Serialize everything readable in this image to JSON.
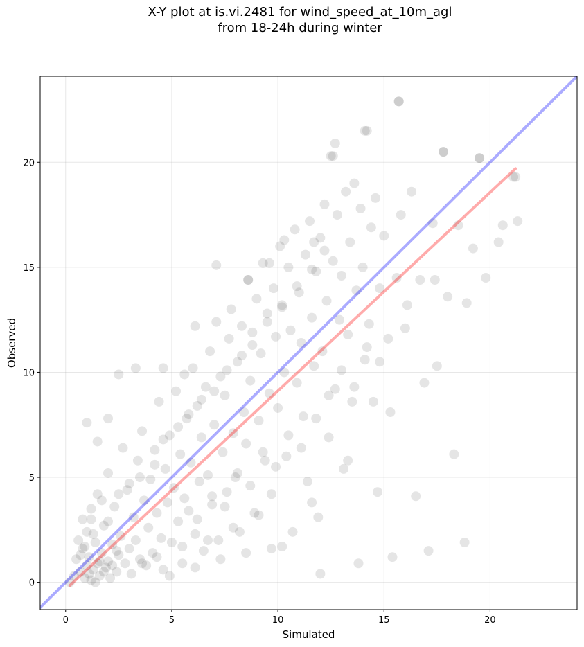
{
  "chart_data": {
    "type": "scatter",
    "title": "X-Y plot at is.vi.2481 for wind_speed_at_10m_agl",
    "subtitle": "from 18-24h during winter",
    "xlabel": "Simulated",
    "ylabel": "Observed",
    "xlim": [
      -1.2,
      24.1
    ],
    "ylim": [
      -1.3,
      24.1
    ],
    "xticks": [
      0,
      5,
      10,
      15,
      20
    ],
    "yticks": [
      0,
      5,
      10,
      15,
      20
    ],
    "grid": true,
    "point_color": "#000000",
    "point_alpha": 0.1,
    "series": [
      {
        "type": "scatter",
        "points": [
          [
            0.2,
            0.0
          ],
          [
            0.4,
            0.3
          ],
          [
            0.5,
            1.1
          ],
          [
            0.6,
            2.0
          ],
          [
            0.7,
            0.5
          ],
          [
            0.8,
            1.6
          ],
          [
            0.9,
            0.2
          ],
          [
            1.0,
            0.8
          ],
          [
            1.0,
            2.4
          ],
          [
            1.1,
            1.2
          ],
          [
            1.2,
            0.1
          ],
          [
            1.2,
            3.0
          ],
          [
            1.3,
            0.6
          ],
          [
            1.4,
            1.9
          ],
          [
            1.5,
            0.9
          ],
          [
            1.5,
            4.2
          ],
          [
            1.6,
            0.3
          ],
          [
            1.7,
            1.4
          ],
          [
            1.8,
            2.7
          ],
          [
            1.9,
            0.7
          ],
          [
            2.0,
            1.0
          ],
          [
            2.0,
            5.2
          ],
          [
            2.1,
            0.2
          ],
          [
            2.2,
            1.8
          ],
          [
            2.3,
            3.6
          ],
          [
            2.4,
            0.5
          ],
          [
            2.5,
            1.3
          ],
          [
            2.6,
            2.2
          ],
          [
            2.7,
            6.4
          ],
          [
            2.8,
            0.9
          ],
          [
            2.9,
            4.4
          ],
          [
            3.0,
            1.6
          ],
          [
            3.1,
            0.4
          ],
          [
            3.2,
            3.1
          ],
          [
            3.3,
            2.0
          ],
          [
            3.4,
            5.8
          ],
          [
            3.5,
            1.1
          ],
          [
            3.6,
            7.2
          ],
          [
            3.7,
            3.9
          ],
          [
            3.8,
            0.8
          ],
          [
            3.9,
            2.6
          ],
          [
            4.0,
            4.9
          ],
          [
            4.1,
            1.4
          ],
          [
            4.2,
            6.3
          ],
          [
            4.3,
            3.3
          ],
          [
            4.4,
            8.6
          ],
          [
            4.5,
            2.1
          ],
          [
            4.6,
            0.6
          ],
          [
            4.7,
            5.4
          ],
          [
            4.8,
            3.8
          ],
          [
            4.9,
            7.0
          ],
          [
            5.0,
            1.9
          ],
          [
            5.1,
            4.5
          ],
          [
            5.2,
            9.1
          ],
          [
            5.3,
            2.9
          ],
          [
            5.4,
            6.1
          ],
          [
            5.5,
            0.9
          ],
          [
            5.6,
            4.0
          ],
          [
            5.7,
            7.8
          ],
          [
            5.8,
            3.4
          ],
          [
            5.9,
            5.7
          ],
          [
            6.0,
            10.2
          ],
          [
            6.1,
            2.3
          ],
          [
            6.2,
            8.4
          ],
          [
            6.3,
            4.8
          ],
          [
            6.4,
            6.9
          ],
          [
            6.5,
            1.5
          ],
          [
            6.6,
            9.3
          ],
          [
            6.7,
            5.1
          ],
          [
            6.8,
            11.0
          ],
          [
            6.9,
            3.7
          ],
          [
            7.0,
            7.5
          ],
          [
            7.1,
            12.4
          ],
          [
            7.2,
            2.0
          ],
          [
            7.3,
            9.8
          ],
          [
            7.4,
            6.2
          ],
          [
            7.5,
            8.9
          ],
          [
            7.6,
            4.3
          ],
          [
            7.7,
            11.6
          ],
          [
            7.8,
            13.0
          ],
          [
            7.9,
            7.1
          ],
          [
            8.0,
            5.0
          ],
          [
            8.1,
            10.5
          ],
          [
            8.2,
            2.4
          ],
          [
            8.3,
            12.2
          ],
          [
            8.4,
            8.1
          ],
          [
            8.5,
            6.6
          ],
          [
            8.6,
            14.4
          ],
          [
            8.7,
            9.6
          ],
          [
            8.8,
            11.3
          ],
          [
            8.9,
            3.3
          ],
          [
            9.0,
            13.5
          ],
          [
            9.1,
            7.7
          ],
          [
            9.2,
            10.9
          ],
          [
            9.3,
            15.2
          ],
          [
            9.4,
            5.8
          ],
          [
            9.5,
            12.8
          ],
          [
            9.6,
            9.0
          ],
          [
            9.7,
            1.6
          ],
          [
            9.8,
            14.0
          ],
          [
            9.9,
            11.7
          ],
          [
            10.0,
            8.3
          ],
          [
            10.1,
            16.0
          ],
          [
            10.2,
            13.1
          ],
          [
            10.3,
            10.0
          ],
          [
            10.4,
            6.0
          ],
          [
            10.5,
            15.0
          ],
          [
            10.6,
            12.0
          ],
          [
            10.7,
            2.4
          ],
          [
            10.8,
            16.8
          ],
          [
            10.9,
            9.5
          ],
          [
            11.0,
            13.8
          ],
          [
            11.1,
            11.4
          ],
          [
            11.2,
            7.9
          ],
          [
            11.3,
            15.6
          ],
          [
            11.4,
            4.8
          ],
          [
            11.5,
            17.2
          ],
          [
            11.6,
            12.6
          ],
          [
            11.7,
            10.3
          ],
          [
            11.8,
            14.8
          ],
          [
            11.9,
            3.1
          ],
          [
            12.0,
            16.4
          ],
          [
            12.1,
            11.0
          ],
          [
            12.2,
            18.0
          ],
          [
            12.3,
            13.4
          ],
          [
            12.4,
            6.9
          ],
          [
            12.5,
            20.3
          ],
          [
            12.6,
            15.3
          ],
          [
            12.7,
            9.2
          ],
          [
            12.8,
            17.5
          ],
          [
            12.9,
            12.5
          ],
          [
            13.0,
            14.6
          ],
          [
            13.1,
            5.4
          ],
          [
            13.2,
            18.6
          ],
          [
            13.3,
            11.8
          ],
          [
            13.4,
            16.2
          ],
          [
            13.5,
            8.6
          ],
          [
            13.6,
            19.0
          ],
          [
            13.7,
            13.9
          ],
          [
            13.8,
            0.9
          ],
          [
            13.9,
            17.8
          ],
          [
            14.0,
            15.0
          ],
          [
            14.1,
            10.6
          ],
          [
            14.2,
            21.5
          ],
          [
            14.3,
            12.3
          ],
          [
            14.4,
            16.9
          ],
          [
            14.5,
            8.6
          ],
          [
            14.6,
            18.3
          ],
          [
            14.7,
            4.3
          ],
          [
            14.8,
            14.0
          ],
          [
            15.0,
            16.5
          ],
          [
            15.2,
            11.6
          ],
          [
            15.4,
            1.2
          ],
          [
            15.6,
            14.5
          ],
          [
            15.7,
            22.9
          ],
          [
            15.8,
            17.5
          ],
          [
            16.0,
            12.1
          ],
          [
            16.3,
            18.6
          ],
          [
            16.5,
            4.1
          ],
          [
            16.7,
            14.4
          ],
          [
            16.9,
            9.5
          ],
          [
            17.1,
            1.5
          ],
          [
            17.3,
            17.1
          ],
          [
            17.5,
            10.3
          ],
          [
            17.8,
            20.5
          ],
          [
            18.0,
            13.6
          ],
          [
            18.3,
            6.1
          ],
          [
            18.5,
            17.0
          ],
          [
            18.8,
            1.9
          ],
          [
            18.9,
            13.3
          ],
          [
            19.2,
            15.9
          ],
          [
            19.5,
            20.2
          ],
          [
            19.8,
            14.5
          ],
          [
            20.4,
            16.2
          ],
          [
            20.6,
            17.0
          ],
          [
            21.1,
            19.3
          ],
          [
            21.3,
            17.2
          ],
          [
            15.3,
            8.1
          ],
          [
            16.1,
            13.2
          ],
          [
            17.4,
            14.4
          ],
          [
            0.7,
            1.3
          ],
          [
            0.9,
            1.7
          ],
          [
            1.1,
            0.4
          ],
          [
            1.3,
            2.3
          ],
          [
            1.4,
            0.0
          ],
          [
            1.6,
            1.0
          ],
          [
            1.8,
            0.5
          ],
          [
            2.0,
            2.9
          ],
          [
            2.2,
            0.8
          ],
          [
            2.4,
            1.5
          ],
          [
            0.8,
            3.0
          ],
          [
            1.2,
            3.5
          ],
          [
            1.7,
            3.9
          ],
          [
            2.5,
            4.2
          ],
          [
            3.0,
            4.7
          ],
          [
            3.5,
            5.0
          ],
          [
            4.2,
            5.6
          ],
          [
            4.6,
            6.8
          ],
          [
            5.3,
            7.4
          ],
          [
            5.8,
            8.0
          ],
          [
            6.4,
            8.7
          ],
          [
            7.0,
            9.1
          ],
          [
            7.6,
            10.1
          ],
          [
            8.3,
            10.8
          ],
          [
            8.8,
            11.9
          ],
          [
            9.5,
            12.4
          ],
          [
            10.2,
            13.2
          ],
          [
            10.9,
            14.1
          ],
          [
            11.6,
            14.9
          ],
          [
            12.2,
            15.8
          ],
          [
            3.6,
            0.9
          ],
          [
            4.3,
            1.2
          ],
          [
            4.9,
            0.3
          ],
          [
            5.5,
            1.7
          ],
          [
            6.1,
            0.7
          ],
          [
            6.7,
            2.0
          ],
          [
            7.3,
            1.1
          ],
          [
            7.9,
            2.6
          ],
          [
            8.5,
            1.4
          ],
          [
            9.1,
            3.2
          ],
          [
            6.2,
            3.0
          ],
          [
            6.9,
            4.1
          ],
          [
            7.5,
            3.6
          ],
          [
            8.1,
            5.2
          ],
          [
            8.7,
            4.6
          ],
          [
            9.3,
            6.2
          ],
          [
            9.9,
            5.5
          ],
          [
            10.5,
            7.0
          ],
          [
            11.1,
            6.4
          ],
          [
            11.8,
            7.8
          ],
          [
            12.4,
            8.9
          ],
          [
            13.0,
            10.1
          ],
          [
            13.6,
            9.3
          ],
          [
            14.2,
            11.2
          ],
          [
            14.8,
            10.5
          ],
          [
            12.0,
            0.4
          ],
          [
            11.6,
            3.8
          ],
          [
            10.2,
            1.7
          ],
          [
            9.7,
            4.2
          ],
          [
            13.3,
            5.8
          ],
          [
            1.0,
            7.6
          ],
          [
            1.5,
            6.7
          ],
          [
            2.0,
            7.8
          ],
          [
            2.5,
            9.9
          ],
          [
            3.3,
            10.2
          ],
          [
            4.6,
            10.2
          ],
          [
            5.6,
            9.9
          ],
          [
            6.1,
            12.2
          ],
          [
            7.1,
            15.1
          ],
          [
            8.6,
            14.4
          ],
          [
            9.6,
            15.2
          ],
          [
            10.3,
            16.3
          ],
          [
            11.7,
            16.2
          ],
          [
            12.6,
            20.3
          ],
          [
            12.7,
            20.9
          ],
          [
            14.1,
            21.5
          ],
          [
            15.7,
            22.9
          ],
          [
            17.8,
            20.5
          ],
          [
            19.5,
            20.2
          ],
          [
            21.2,
            19.3
          ]
        ]
      }
    ],
    "lines": [
      {
        "name": "",
        "color": "#0000ff",
        "alpha": 0.33,
        "x": [
          -1.2,
          24.1
        ],
        "y": [
          -1.2,
          24.1
        ]
      },
      {
        "name": "",
        "color": "#ff0000",
        "alpha": 0.33,
        "x": [
          0.2,
          21.2
        ],
        "y": [
          -0.15,
          19.7
        ]
      }
    ]
  }
}
